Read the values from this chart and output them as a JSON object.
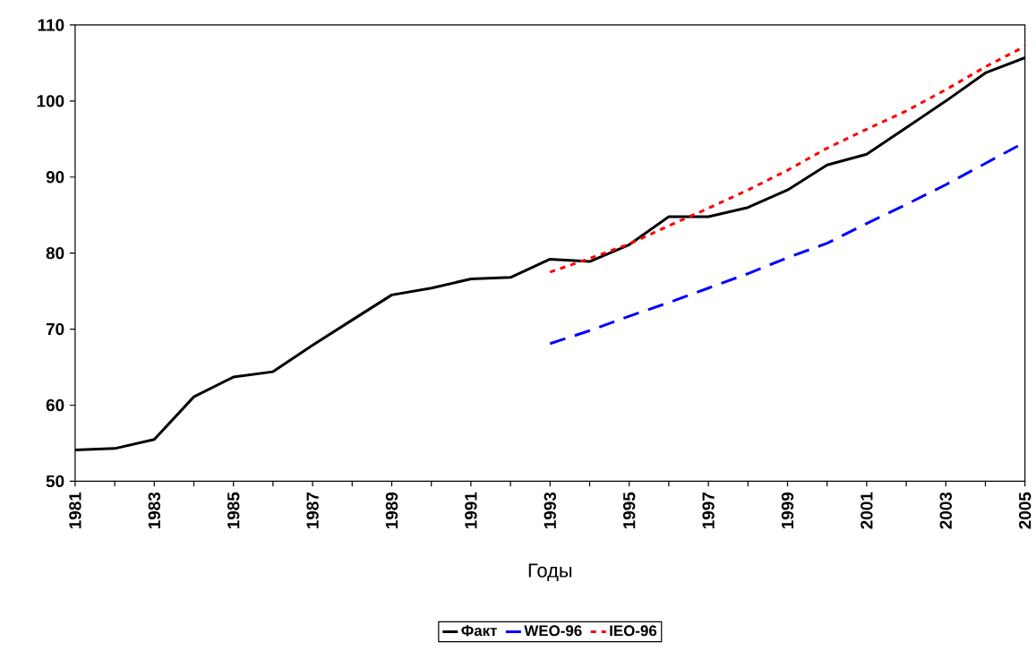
{
  "chart_data": {
    "type": "line",
    "xlabel": "Годы",
    "xlim": [
      1981,
      2005
    ],
    "xticks": [
      1981,
      {
        "value": 1982,
        "label": null
      },
      1983,
      {
        "value": 1984,
        "label": null
      },
      1985,
      {
        "value": 1986,
        "label": null
      },
      1987,
      {
        "value": 1988,
        "label": null
      },
      1989,
      {
        "value": 1990,
        "label": null
      },
      1991,
      {
        "value": 1992,
        "label": null
      },
      1993,
      {
        "value": 1994,
        "label": null
      },
      1995,
      {
        "value": 1996,
        "label": null
      },
      1997,
      {
        "value": 1998,
        "label": null
      },
      1999,
      {
        "value": 2000,
        "label": null
      },
      2001,
      {
        "value": 2002,
        "label": null
      },
      2003,
      {
        "value": 2004,
        "label": null
      },
      2005
    ],
    "ylim": [
      50,
      110
    ],
    "yticks": [
      50,
      60,
      70,
      80,
      90,
      100,
      110
    ],
    "grid": false,
    "legend": "bottom",
    "marker": "none",
    "series": [
      {
        "name": "Факт",
        "color": "#000000",
        "line_style": "solid",
        "x": [
          1981,
          1982,
          1983,
          1984,
          1985,
          1986,
          1987,
          1988,
          1989,
          1990,
          1991,
          1992,
          1993,
          1994,
          1995,
          1996,
          1997,
          1998,
          1999,
          2000,
          2001,
          2002,
          2003,
          2004,
          2005
        ],
        "values": [
          54.1,
          54.3,
          55.5,
          61.1,
          63.7,
          64.4,
          67.9,
          71.2,
          74.5,
          75.4,
          76.6,
          76.8,
          79.2,
          78.9,
          81.1,
          84.8,
          84.8,
          86.0,
          88.3,
          91.6,
          93.0,
          96.5,
          100.0,
          103.7,
          105.7
        ]
      },
      {
        "name": "WEO-96",
        "color": "#0000ff",
        "line_style": "dashed",
        "x": [
          1993,
          1994,
          1995,
          1996,
          1997,
          1998,
          1999,
          2000,
          2001,
          2002,
          2003,
          2004,
          2005
        ],
        "values": [
          68.1,
          69.8,
          71.7,
          73.5,
          75.4,
          77.3,
          79.4,
          81.3,
          83.9,
          86.4,
          89.0,
          91.8,
          94.6
        ]
      },
      {
        "name": "IEO-96",
        "color": "#ff0000",
        "line_style": "dotted",
        "x": [
          1993,
          1994,
          1995,
          1996,
          1997,
          1998,
          1999,
          2000,
          2001,
          2002,
          2003,
          2004,
          2005
        ],
        "values": [
          77.5,
          79.3,
          81.2,
          83.6,
          85.9,
          88.3,
          90.9,
          93.8,
          96.3,
          98.7,
          101.5,
          104.5,
          107.2
        ]
      }
    ]
  }
}
